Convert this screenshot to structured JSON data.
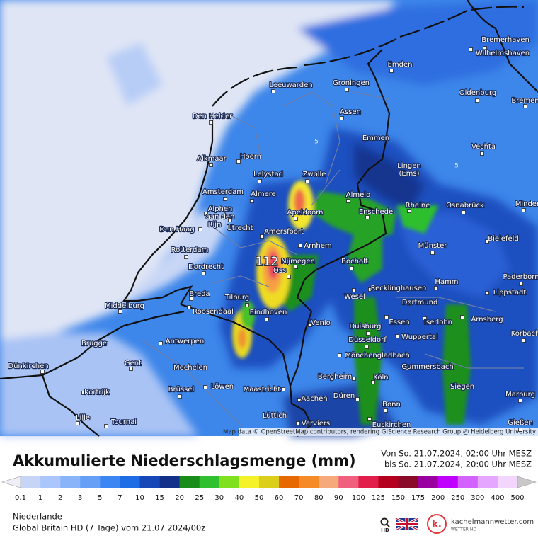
{
  "map": {
    "labels": [
      "Bremerhaven",
      "Wilhelmshaven",
      "Emden",
      "Leeuwarden",
      "Groningen",
      "Oldenburg",
      "Bremen",
      "Den Helder",
      "Assen",
      "Emmen",
      "Vechta",
      "Alkmaar",
      "Hoorn",
      "Lingen",
      "(Ems)",
      "Lelystad",
      "Zwolle",
      "Amsterdam",
      "Almere",
      "Almelo",
      "Rheine",
      "Osnabrück",
      "Minden",
      "Alphen",
      "aan den",
      "Rijn",
      "Apeldoorn",
      "Enschede",
      "Utrecht",
      "Den Haag",
      "Amersfoort",
      "Bielefeld",
      "Arnhem",
      "Münster",
      "Rotterdam",
      "Nijmegen",
      "Bocholt",
      "Dordrecht",
      "Oss",
      "Paderborn",
      "Hamm",
      "Recklinghausen",
      "Lippstadt",
      "Breda",
      "Tilburg",
      "Wesel",
      "Dortmund",
      "Middelburg",
      "Roosendaal",
      "Eindhoven",
      "Arnsberg",
      "Essen",
      "Iserlohn",
      "Venlo",
      "Duisburg",
      "Korbach",
      "Wuppertal",
      "Düsseldorf",
      "Antwerpen",
      "Brugge",
      "Mönchengladbach",
      "Gent",
      "Dünkirchen",
      "Mechelen",
      "Gummersbach",
      "Bergheim",
      "Köln",
      "Kortrijk",
      "Löwen",
      "Brüssel",
      "Maastricht",
      "Siegen",
      "Düren",
      "Marburg",
      "Aachen",
      "Bonn",
      "Lille",
      "Lüttich",
      "Tournai",
      "Euskirchen",
      "Verviers",
      "Gießen"
    ],
    "peak_label": "112",
    "contour_labels": [
      "5",
      "5"
    ],
    "attribution": "Map data © OpenStreetMap contributors, rendering GIScience Research Group @ Heidelberg University"
  },
  "legend": {
    "title": "Akkumulierte Niederschlagsmenge (mm)",
    "period_from": "Von So. 21.07.2024, 02:00 Uhr MESZ",
    "period_to": "bis So. 21.07.2024, 20:00 Uhr MESZ",
    "ticks": [
      0.1,
      1,
      2,
      3,
      5,
      7,
      10,
      15,
      20,
      25,
      30,
      40,
      50,
      60,
      70,
      80,
      90,
      100,
      125,
      150,
      175,
      200,
      250,
      300,
      400,
      500
    ],
    "colors": [
      "#c6d4f6",
      "#aac6fa",
      "#8ab4fa",
      "#659ff6",
      "#3b86f2",
      "#1e6de6",
      "#1848b8",
      "#12308a",
      "#1a8c1a",
      "#2fbf2f",
      "#7ee01e",
      "#f6f22a",
      "#dccf1a",
      "#e86800",
      "#f58a26",
      "#f6a97a",
      "#f0607e",
      "#e21e4a",
      "#b4001e",
      "#8a0a2a",
      "#9a00a0",
      "#c000ff",
      "#d462ff",
      "#e4a6ff",
      "#f2d6ff"
    ]
  },
  "footer": {
    "region": "Niederlande",
    "model": "Global Britain HD (7 Tage) vom 21.07.2024/00z",
    "search_hd": "HD",
    "brand": "kachelmannwetter.com",
    "brand_sub": "WETTER HD",
    "brand_logo": "k."
  }
}
